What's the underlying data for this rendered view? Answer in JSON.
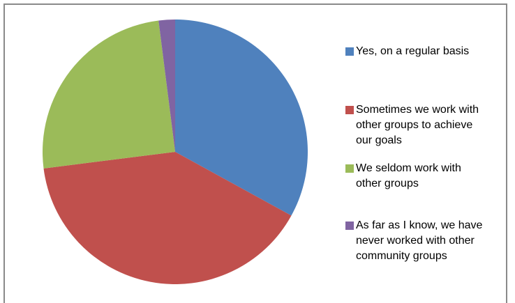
{
  "chart_data": {
    "type": "pie",
    "title": "",
    "legend_position": "right",
    "slices": [
      {
        "label": "Yes, on a regular basis",
        "value": 33,
        "color": "#4f81bd"
      },
      {
        "label": "Sometimes we work with other groups to achieve our goals",
        "value": 40,
        "color": "#c0504d"
      },
      {
        "label": "We seldom work with other groups",
        "value": 25,
        "color": "#9bbb59"
      },
      {
        "label": "As far as I know, we have never worked with other community groups",
        "value": 2,
        "color": "#8064a2"
      }
    ],
    "legend": [
      {
        "lines": [
          "Yes, on a regular basis"
        ]
      },
      {
        "lines": [
          "Sometimes we work with",
          "other groups to achieve",
          "our goals"
        ]
      },
      {
        "lines": [
          "We seldom work with",
          "other groups"
        ]
      },
      {
        "lines": [
          "As far as I know, we have",
          "never worked with other",
          "community groups"
        ]
      }
    ]
  }
}
